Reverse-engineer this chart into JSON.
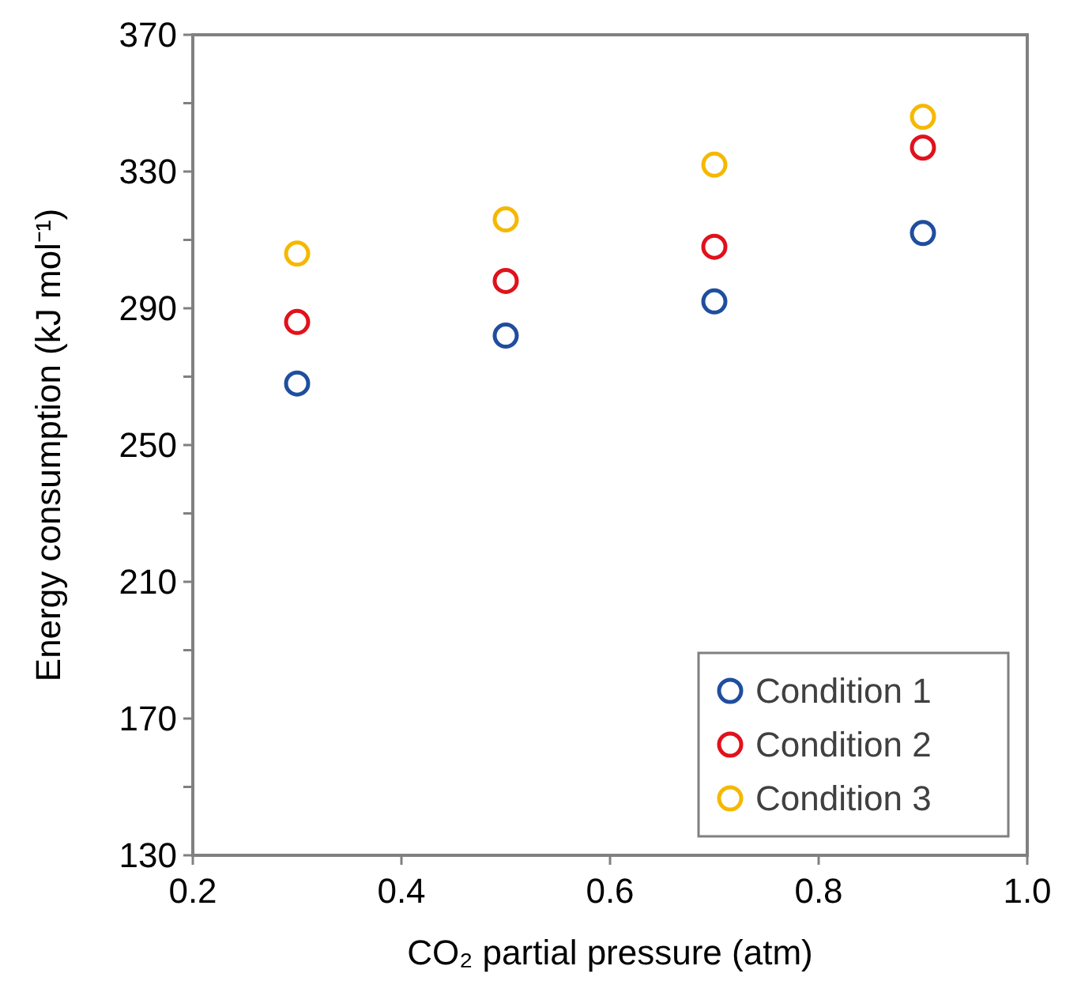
{
  "chart_data": {
    "type": "scatter",
    "xlabel": "CO₂ partial pressure (atm)",
    "ylabel": "Energy consumption (kJ mol⁻¹)",
    "x": [
      0.3,
      0.5,
      0.7,
      0.9
    ],
    "series": [
      {
        "name": "Condition 1",
        "color": "#1f4e9e",
        "values": [
          268,
          282,
          292,
          312
        ]
      },
      {
        "name": "Condition 2",
        "color": "#e0121c",
        "values": [
          286,
          298,
          308,
          337
        ]
      },
      {
        "name": "Condition 3",
        "color": "#f5b800",
        "values": [
          306,
          316,
          332,
          346
        ]
      }
    ],
    "xlim": [
      0.2,
      1.0
    ],
    "xticks": [
      {
        "value": 0.2,
        "label": "0.2"
      },
      {
        "value": 0.4,
        "label": "0.4"
      },
      {
        "value": 0.6,
        "label": "0.6"
      },
      {
        "value": 0.8,
        "label": "0.8"
      },
      {
        "value": 1.0,
        "label": "1.0"
      }
    ],
    "ylim": [
      130,
      370
    ],
    "yticks": [
      130,
      {
        "value": 150,
        "label": null
      },
      170,
      {
        "value": 190,
        "label": null
      },
      210,
      {
        "value": 230,
        "label": null
      },
      250,
      {
        "value": 270,
        "label": null
      },
      290,
      {
        "value": 310,
        "label": null
      },
      330,
      {
        "value": 350,
        "label": null
      },
      370
    ],
    "marker": "circle",
    "grid": false,
    "legend": "bottom right"
  }
}
